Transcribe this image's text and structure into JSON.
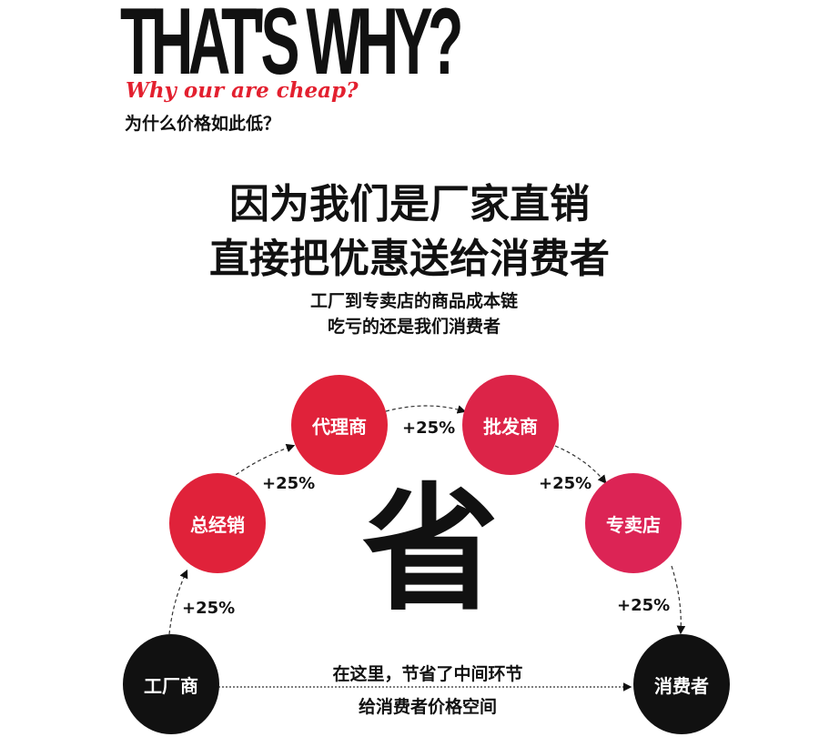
{
  "header": {
    "title": "THAT'S WHY?",
    "subtitle_en": "Why our are cheap?",
    "subtitle_cn": "为什么价格如此低？"
  },
  "headline": {
    "line1": "因为我们是厂家直销",
    "line2": "直接把优惠送给消费者"
  },
  "subtext": {
    "line1": "工厂到专卖店的商品成本链",
    "line2": "吃亏的还是我们消费者"
  },
  "chain": {
    "nodes": [
      {
        "label": "工厂商",
        "color": "#111111"
      },
      {
        "label": "总经销",
        "color": "#e0223a"
      },
      {
        "label": "代理商",
        "color": "#e0223a"
      },
      {
        "label": "批发商",
        "color": "#dc2448"
      },
      {
        "label": "专卖店",
        "color": "#dc2455"
      },
      {
        "label": "消费者",
        "color": "#111111"
      }
    ],
    "markups": [
      "+25%",
      "+25%",
      "+25%",
      "+25%",
      "+25%"
    ],
    "center_char": "省",
    "note_line1": "在这里，节省了中间环节",
    "note_line2": "给消费者价格空间"
  }
}
